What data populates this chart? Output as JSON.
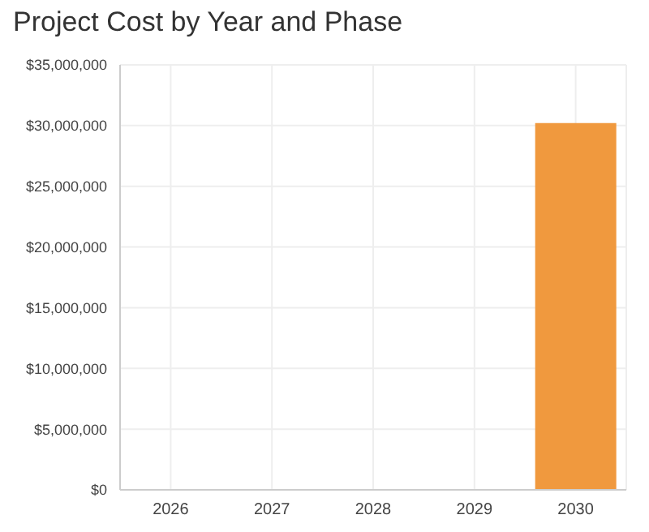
{
  "chart_data": {
    "type": "bar",
    "title": "Project Cost by Year and Phase",
    "categories": [
      "2026",
      "2027",
      "2028",
      "2029",
      "2030"
    ],
    "values": [
      0,
      0,
      0,
      0,
      30200000
    ],
    "color": "#f0993e",
    "ylim": [
      0,
      35000000
    ],
    "yticks": [
      {
        "value": 0,
        "label": "$0"
      },
      {
        "value": 5000000,
        "label": "$5,000,000"
      },
      {
        "value": 10000000,
        "label": "$10,000,000"
      },
      {
        "value": 15000000,
        "label": "$15,000,000"
      },
      {
        "value": 20000000,
        "label": "$20,000,000"
      },
      {
        "value": 25000000,
        "label": "$25,000,000"
      },
      {
        "value": 30000000,
        "label": "$30,000,000"
      },
      {
        "value": 35000000,
        "label": "$35,000,000"
      }
    ],
    "grid": true
  }
}
